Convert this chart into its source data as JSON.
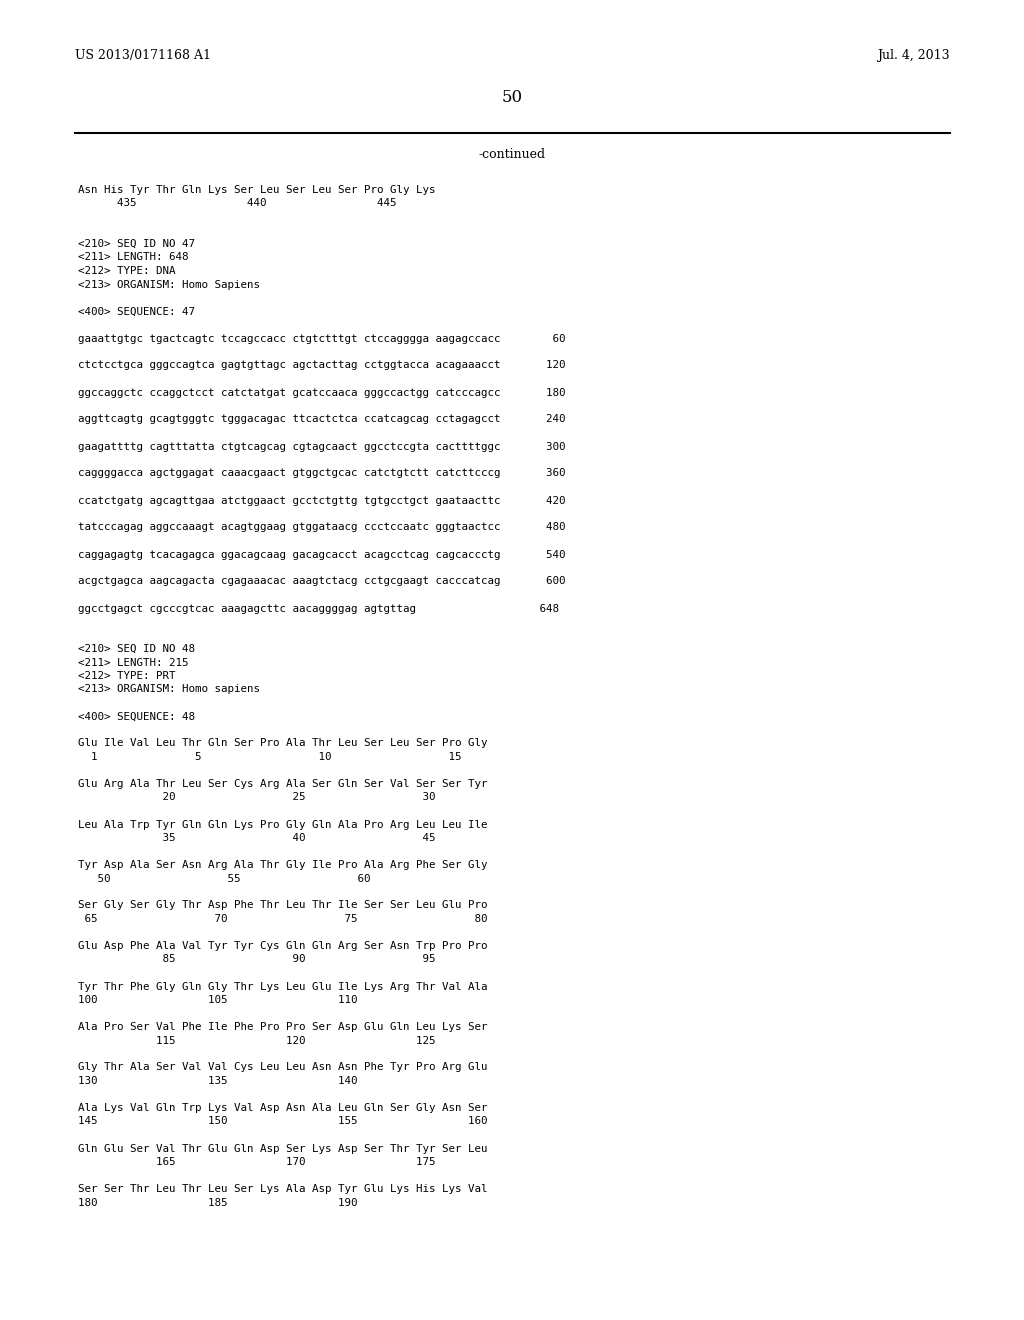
{
  "bg_color": "#ffffff",
  "header_left": "US 2013/0171168 A1",
  "header_right": "Jul. 4, 2013",
  "page_number": "50",
  "continued_label": "-continued",
  "lines": [
    "Asn His Tyr Thr Gln Lys Ser Leu Ser Leu Ser Pro Gly Lys",
    "      435                 440                 445",
    "",
    "",
    "<210> SEQ ID NO 47",
    "<211> LENGTH: 648",
    "<212> TYPE: DNA",
    "<213> ORGANISM: Homo Sapiens",
    "",
    "<400> SEQUENCE: 47",
    "",
    "gaaattgtgc tgactcagtc tccagccacc ctgtctttgt ctccagggga aagagccacc        60",
    "",
    "ctctcctgca gggccagtca gagtgttagc agctacttag cctggtacca acagaaacct       120",
    "",
    "ggccaggctc ccaggctcct catctatgat gcatccaaca gggccactgg catcccagcc       180",
    "",
    "aggttcagtg gcagtgggtc tgggacagac ttcactctca ccatcagcag cctagagcct       240",
    "",
    "gaagattttg cagtttatta ctgtcagcag cgtagcaact ggcctccgta cacttttggc       300",
    "",
    "caggggacca agctggagat caaacgaact gtggctgcac catctgtctt catcttcccg       360",
    "",
    "ccatctgatg agcagttgaa atctggaact gcctctgttg tgtgcctgct gaataacttc       420",
    "",
    "tatcccagag aggccaaagt acagtggaag gtggataacg ccctccaatc gggtaactcc       480",
    "",
    "caggagagtg tcacagagca ggacagcaag gacagcacct acagcctcag cagcaccctg       540",
    "",
    "acgctgagca aagcagacta cgagaaacac aaagtctacg cctgcgaagt cacccatcag       600",
    "",
    "ggcctgagct cgcccgtcac aaagagcttc aacaggggag agtgttag                   648",
    "",
    "",
    "<210> SEQ ID NO 48",
    "<211> LENGTH: 215",
    "<212> TYPE: PRT",
    "<213> ORGANISM: Homo sapiens",
    "",
    "<400> SEQUENCE: 48",
    "",
    "Glu Ile Val Leu Thr Gln Ser Pro Ala Thr Leu Ser Leu Ser Pro Gly",
    "  1               5                  10                  15",
    "",
    "Glu Arg Ala Thr Leu Ser Cys Arg Ala Ser Gln Ser Val Ser Ser Tyr",
    "             20                  25                  30",
    "",
    "Leu Ala Trp Tyr Gln Gln Lys Pro Gly Gln Ala Pro Arg Leu Leu Ile",
    "             35                  40                  45",
    "",
    "Tyr Asp Ala Ser Asn Arg Ala Thr Gly Ile Pro Ala Arg Phe Ser Gly",
    "   50                  55                  60",
    "",
    "Ser Gly Ser Gly Thr Asp Phe Thr Leu Thr Ile Ser Ser Leu Glu Pro",
    " 65                  70                  75                  80",
    "",
    "Glu Asp Phe Ala Val Tyr Tyr Cys Gln Gln Arg Ser Asn Trp Pro Pro",
    "             85                  90                  95",
    "",
    "Tyr Thr Phe Gly Gln Gly Thr Lys Leu Glu Ile Lys Arg Thr Val Ala",
    "100                 105                 110",
    "",
    "Ala Pro Ser Val Phe Ile Phe Pro Pro Ser Asp Glu Gln Leu Lys Ser",
    "            115                 120                 125",
    "",
    "Gly Thr Ala Ser Val Val Cys Leu Leu Asn Asn Phe Tyr Pro Arg Glu",
    "130                 135                 140",
    "",
    "Ala Lys Val Gln Trp Lys Val Asp Asn Ala Leu Gln Ser Gly Asn Ser",
    "145                 150                 155                 160",
    "",
    "Gln Glu Ser Val Thr Glu Gln Asp Ser Lys Asp Ser Thr Tyr Ser Leu",
    "            165                 170                 175",
    "",
    "Ser Ser Thr Leu Thr Leu Ser Lys Ala Asp Tyr Glu Lys His Lys Val",
    "180                 185                 190"
  ]
}
